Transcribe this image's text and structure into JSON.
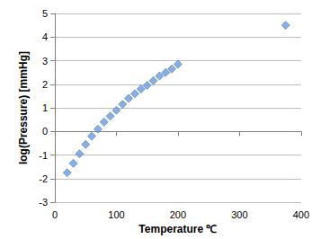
{
  "chart_data": {
    "type": "scatter",
    "x_label": "Temperature ℃",
    "y_label": "log(Pressure) [mmHg]",
    "x": [
      20,
      30,
      40,
      50,
      60,
      70,
      80,
      90,
      100,
      110,
      120,
      130,
      140,
      150,
      160,
      170,
      180,
      190,
      200,
      375
    ],
    "values": [
      -1.75,
      -1.35,
      -0.95,
      -0.55,
      -0.2,
      0.1,
      0.4,
      0.65,
      0.9,
      1.15,
      1.4,
      1.6,
      1.8,
      1.95,
      2.15,
      2.35,
      2.5,
      2.65,
      2.85,
      4.5
    ],
    "color": "#6b9bd8",
    "marker": "diamond",
    "xlim": [
      0,
      400
    ],
    "xticks": [
      0,
      100,
      200,
      300,
      400
    ],
    "ylim": [
      -3,
      5
    ],
    "yticks": [
      -3,
      -2,
      -1,
      0,
      1,
      2,
      3,
      4,
      5
    ],
    "grid": true
  }
}
